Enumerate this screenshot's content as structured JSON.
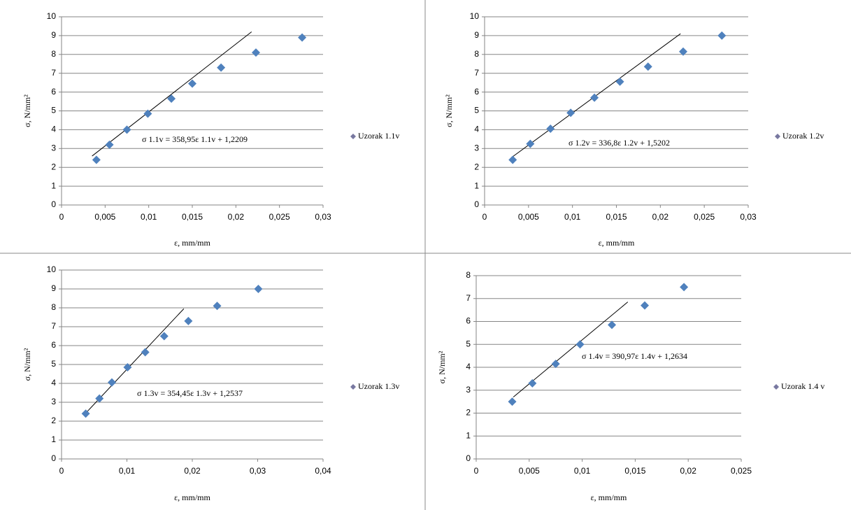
{
  "chart_data": [
    {
      "type": "scatter",
      "x_label": "ε, mm/mm",
      "y_label": "σ, N/mm²",
      "annotation": "σ 1.1v = 358,95ε 1.1v + 1,2209",
      "legend": "right",
      "grid": true,
      "series": [
        {
          "name": "Uzorak 1.1v",
          "color": "#4f81bd",
          "legend_color": "#7878a0",
          "x": [
            0.004,
            0.0055,
            0.0075,
            0.0099,
            0.0126,
            0.015,
            0.0183,
            0.0223,
            0.0276
          ],
          "values": [
            2.4,
            3.2,
            4.0,
            4.85,
            5.65,
            6.45,
            7.3,
            8.1,
            8.9
          ]
        }
      ],
      "trendline": {
        "x": [
          0.0035,
          0.0218
        ],
        "y": [
          2.6,
          9.2
        ]
      },
      "xlim": [
        0,
        0.03
      ],
      "xticks": [
        0,
        {
          "value": 0.005,
          "label": "0,005"
        },
        {
          "value": 0.01,
          "label": "0,01"
        },
        {
          "value": 0.015,
          "label": "0,015"
        },
        {
          "value": 0.02,
          "label": "0,02"
        },
        {
          "value": 0.025,
          "label": "0,025"
        },
        {
          "value": 0.03,
          "label": "0,03"
        }
      ],
      "ylim": [
        0,
        10
      ],
      "yticks": [
        0,
        1,
        2,
        3,
        4,
        5,
        6,
        7,
        8,
        9,
        10
      ]
    },
    {
      "type": "scatter",
      "x_label": "ε, mm/mm",
      "y_label": "σ, N/mm²",
      "annotation": "σ 1.2v = 336,8ε 1.2v + 1,5202",
      "legend": "right",
      "grid": true,
      "series": [
        {
          "name": "Uzorak 1.2v",
          "color": "#4f81bd",
          "legend_color": "#7878a0",
          "x": [
            0.0032,
            0.0052,
            0.0075,
            0.0098,
            0.0125,
            0.0154,
            0.0186,
            0.0226,
            0.027
          ],
          "values": [
            2.4,
            3.25,
            4.05,
            4.9,
            5.7,
            6.55,
            7.35,
            8.15,
            9.0
          ]
        }
      ],
      "trendline": {
        "x": [
          0.003,
          0.0223
        ],
        "y": [
          2.5,
          9.1
        ]
      },
      "xlim": [
        0,
        0.03
      ],
      "xticks": [
        0,
        {
          "value": 0.005,
          "label": "0,005"
        },
        {
          "value": 0.01,
          "label": "0,01"
        },
        {
          "value": 0.015,
          "label": "0,015"
        },
        {
          "value": 0.02,
          "label": "0,02"
        },
        {
          "value": 0.025,
          "label": "0,025"
        },
        {
          "value": 0.03,
          "label": "0,03"
        }
      ],
      "ylim": [
        0,
        10
      ],
      "yticks": [
        0,
        1,
        2,
        3,
        4,
        5,
        6,
        7,
        8,
        9,
        10
      ]
    },
    {
      "type": "scatter",
      "x_label": "ε, mm/mm",
      "y_label": "σ, N/mm²",
      "annotation": "σ 1.3v = 354,45ε 1.3v + 1,2537",
      "legend": "right",
      "grid": true,
      "series": [
        {
          "name": "Uzorak 1.3v",
          "color": "#4f81bd",
          "legend_color": "#7878a0",
          "x": [
            0.0037,
            0.0058,
            0.0077,
            0.0101,
            0.0128,
            0.0157,
            0.0194,
            0.0238,
            0.0301
          ],
          "values": [
            2.4,
            3.2,
            4.05,
            4.85,
            5.65,
            6.5,
            7.3,
            8.1,
            9.0
          ]
        }
      ],
      "trendline": {
        "x": [
          0.0035,
          0.0187
        ],
        "y": [
          2.35,
          7.95
        ]
      },
      "xlim": [
        0,
        0.04
      ],
      "xticks": [
        0,
        {
          "value": 0.01,
          "label": "0,01"
        },
        {
          "value": 0.02,
          "label": "0,02"
        },
        {
          "value": 0.03,
          "label": "0,03"
        },
        {
          "value": 0.04,
          "label": "0,04"
        }
      ],
      "ylim": [
        0,
        10
      ],
      "yticks": [
        0,
        1,
        2,
        3,
        4,
        5,
        6,
        7,
        8,
        9,
        10
      ]
    },
    {
      "type": "scatter",
      "x_label": "ε, mm/mm",
      "y_label": "σ, N/mm²",
      "annotation": "σ 1.4v = 390,97ε 1.4v + 1,2634",
      "legend": "right",
      "grid": true,
      "series": [
        {
          "name": "Uzorak 1.4 v",
          "color": "#4f81bd",
          "legend_color": "#7878a0",
          "x": [
            0.0034,
            0.0053,
            0.0075,
            0.0098,
            0.0128,
            0.0159,
            0.0196
          ],
          "values": [
            2.5,
            3.3,
            4.15,
            5.0,
            5.85,
            6.7,
            7.5
          ]
        }
      ],
      "trendline": {
        "x": [
          0.0035,
          0.0143
        ],
        "y": [
          2.7,
          6.85
        ]
      },
      "xlim": [
        0,
        0.025
      ],
      "xticks": [
        0,
        {
          "value": 0.005,
          "label": "0,005"
        },
        {
          "value": 0.01,
          "label": "0,01"
        },
        {
          "value": 0.015,
          "label": "0,015"
        },
        {
          "value": 0.02,
          "label": "0,02"
        },
        {
          "value": 0.025,
          "label": "0,025"
        }
      ],
      "ylim": [
        0,
        8
      ],
      "yticks": [
        0,
        1,
        2,
        3,
        4,
        5,
        6,
        7,
        8
      ]
    }
  ]
}
